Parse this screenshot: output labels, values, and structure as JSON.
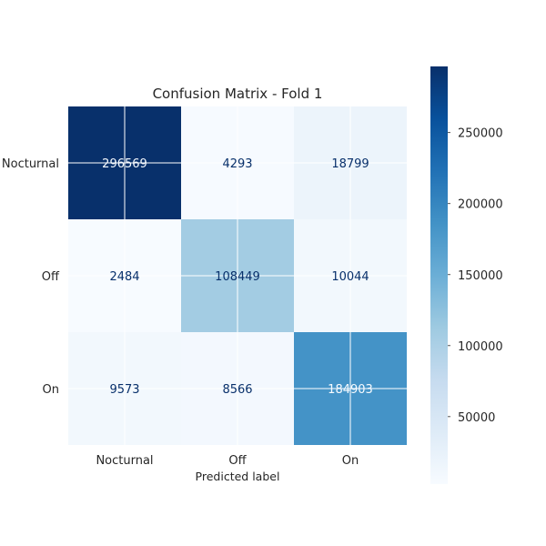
{
  "chart_data": {
    "type": "heatmap",
    "title": "Confusion Matrix - Fold 1",
    "xlabel": "Predicted label",
    "ylabel": "",
    "x_categories": [
      "Nocturnal",
      "Off",
      "On"
    ],
    "y_categories": [
      "Nocturnal",
      "Off",
      "On"
    ],
    "values": [
      [
        296569,
        4293,
        18799
      ],
      [
        2484,
        108449,
        10044
      ],
      [
        9573,
        8566,
        184903
      ]
    ],
    "colormap": "Blues",
    "vmin": 2484,
    "vmax": 296569,
    "colorbar_ticks": [
      50000,
      100000,
      150000,
      200000,
      250000
    ],
    "grid": true
  }
}
